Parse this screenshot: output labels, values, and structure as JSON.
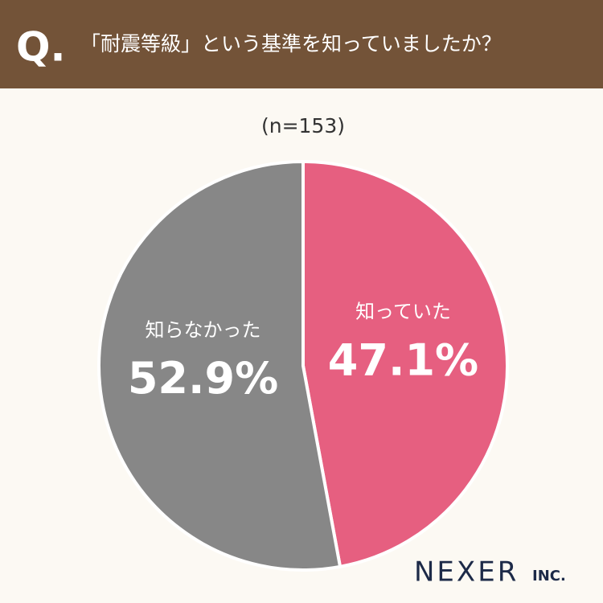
{
  "chart_data": {
    "type": "pie",
    "question_mark": "Q.",
    "title": "「耐震等級」という基準を知っていましたか？",
    "subtitle": "(n=153)",
    "categories": [
      "知っていた",
      "知らなかった"
    ],
    "values": [
      47.1,
      52.9
    ],
    "value_labels": [
      "47.1%",
      "52.9%"
    ],
    "colors": [
      "#e65f80",
      "#878787"
    ],
    "brand": {
      "name": "NEXER",
      "suffix": "INC."
    }
  }
}
